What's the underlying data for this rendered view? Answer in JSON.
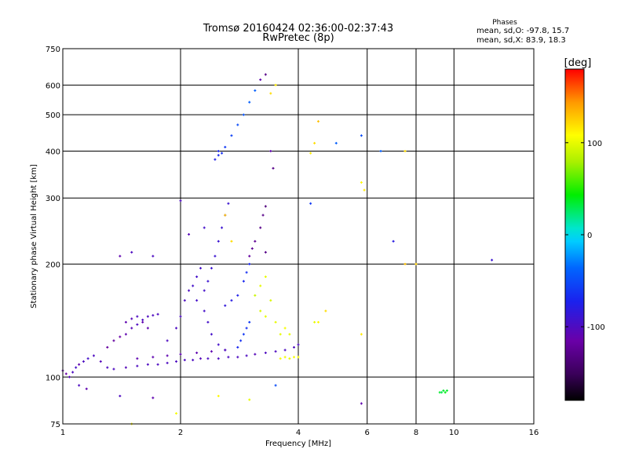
{
  "chart_data": {
    "type": "scatter",
    "title": "Tromsø 20160424 02:36:00-02:37:43",
    "subtitle": "RwPretec (8p)",
    "xlabel": "Frequency [MHz]",
    "ylabel": "Stationary phase Virtual Height [km]",
    "x_scale": "log",
    "y_scale": "log",
    "xlim": [
      1,
      16
    ],
    "ylim": [
      75,
      750
    ],
    "x_ticks": [
      1,
      2,
      4,
      6,
      8,
      10,
      16
    ],
    "y_ticks": [
      75,
      100,
      200,
      300,
      400,
      500,
      600,
      750
    ],
    "grid": true,
    "stats": {
      "heading": "Phases",
      "line_o": "mean, sd,O: -97.8, 15.7",
      "line_x": "mean, sd,X: 83.9, 18.3"
    },
    "colorbar": {
      "label": "[deg]",
      "ticks": [
        100,
        0,
        -100
      ],
      "range": [
        -180,
        180
      ]
    },
    "series": [
      {
        "points": [
          [
            1.0,
            104,
            -110
          ],
          [
            1.02,
            102,
            -115
          ],
          [
            1.04,
            100,
            -105
          ],
          [
            1.06,
            103,
            -100
          ],
          [
            1.08,
            106,
            -95
          ],
          [
            1.1,
            108,
            -110
          ],
          [
            1.13,
            110,
            -100
          ],
          [
            1.16,
            112,
            -95
          ],
          [
            1.2,
            114,
            -100
          ],
          [
            1.25,
            110,
            -105
          ],
          [
            1.3,
            106,
            -100
          ],
          [
            1.35,
            105,
            -100
          ],
          [
            1.45,
            106,
            -105
          ],
          [
            1.55,
            107,
            -100
          ],
          [
            1.65,
            108,
            -100
          ],
          [
            1.75,
            108,
            -100
          ],
          [
            1.85,
            109,
            -100
          ],
          [
            1.95,
            110,
            -100
          ],
          [
            2.05,
            111,
            -100
          ],
          [
            2.15,
            111,
            -100
          ],
          [
            2.25,
            112,
            -105
          ],
          [
            2.35,
            112,
            -100
          ],
          [
            2.5,
            112,
            -100
          ],
          [
            2.65,
            113,
            -100
          ],
          [
            2.8,
            113,
            -100
          ],
          [
            2.95,
            114,
            -100
          ],
          [
            3.1,
            115,
            -105
          ],
          [
            3.3,
            116,
            -100
          ],
          [
            3.5,
            117,
            -100
          ],
          [
            3.7,
            118,
            -100
          ],
          [
            3.9,
            120,
            -100
          ],
          [
            4.0,
            122,
            -100
          ],
          [
            1.55,
            112,
            -110
          ],
          [
            1.7,
            113,
            -110
          ],
          [
            1.85,
            114,
            -110
          ],
          [
            2.0,
            115,
            -110
          ],
          [
            2.2,
            116,
            -110
          ],
          [
            2.4,
            117,
            -110
          ],
          [
            2.6,
            118,
            -110
          ],
          [
            1.3,
            120,
            -120
          ],
          [
            1.35,
            125,
            -120
          ],
          [
            1.4,
            128,
            -115
          ],
          [
            1.45,
            130,
            -110
          ],
          [
            1.5,
            135,
            -105
          ],
          [
            1.55,
            138,
            -100
          ],
          [
            1.6,
            142,
            -100
          ],
          [
            1.65,
            145,
            -100
          ],
          [
            1.7,
            146,
            -100
          ],
          [
            1.75,
            147,
            -100
          ],
          [
            1.45,
            140,
            -110
          ],
          [
            1.5,
            143,
            -105
          ],
          [
            1.55,
            145,
            -100
          ],
          [
            1.6,
            140,
            -110
          ],
          [
            1.65,
            135,
            -110
          ],
          [
            1.85,
            125,
            -100
          ],
          [
            1.95,
            135,
            -100
          ],
          [
            2.0,
            145,
            -100
          ],
          [
            2.05,
            160,
            -100
          ],
          [
            2.1,
            170,
            -100
          ],
          [
            2.15,
            175,
            -95
          ],
          [
            2.2,
            185,
            -95
          ],
          [
            2.25,
            195,
            -95
          ],
          [
            2.2,
            160,
            -95
          ],
          [
            2.3,
            170,
            -95
          ],
          [
            2.35,
            180,
            -90
          ],
          [
            2.4,
            195,
            -90
          ],
          [
            2.45,
            210,
            -90
          ],
          [
            2.5,
            230,
            -90
          ],
          [
            2.55,
            250,
            -90
          ],
          [
            2.6,
            270,
            -90
          ],
          [
            2.65,
            290,
            -90
          ],
          [
            2.3,
            150,
            -95
          ],
          [
            2.35,
            140,
            -95
          ],
          [
            2.4,
            130,
            -95
          ],
          [
            2.5,
            122,
            -95
          ],
          [
            2.6,
            118,
            -100
          ],
          [
            2.6,
            155,
            -85
          ],
          [
            2.7,
            160,
            -80
          ],
          [
            2.8,
            165,
            -75
          ],
          [
            2.9,
            180,
            -70
          ],
          [
            2.95,
            190,
            -65
          ],
          [
            3.0,
            200,
            -70
          ],
          [
            2.8,
            120,
            -70
          ],
          [
            2.85,
            125,
            -65
          ],
          [
            2.9,
            130,
            -60
          ],
          [
            2.95,
            135,
            -65
          ],
          [
            3.0,
            140,
            -60
          ],
          [
            3.0,
            210,
            -120
          ],
          [
            3.1,
            230,
            -125
          ],
          [
            3.2,
            250,
            -130
          ],
          [
            3.25,
            270,
            -130
          ],
          [
            3.3,
            285,
            -135
          ],
          [
            3.05,
            220,
            -125
          ],
          [
            2.5,
            390,
            -70
          ],
          [
            2.55,
            395,
            -65
          ],
          [
            2.6,
            410,
            -60
          ],
          [
            2.7,
            440,
            -55
          ],
          [
            2.8,
            470,
            -50
          ],
          [
            2.9,
            500,
            -45
          ],
          [
            3.0,
            540,
            -40
          ],
          [
            3.1,
            580,
            -40
          ],
          [
            3.2,
            620,
            -110
          ],
          [
            3.3,
            640,
            -130
          ],
          [
            2.45,
            380,
            -75
          ],
          [
            2.5,
            400,
            -70
          ],
          [
            3.1,
            165,
            90
          ],
          [
            3.2,
            175,
            100
          ],
          [
            3.3,
            185,
            100
          ],
          [
            3.2,
            150,
            95
          ],
          [
            3.3,
            145,
            100
          ],
          [
            3.4,
            160,
            95
          ],
          [
            3.5,
            140,
            100
          ],
          [
            3.6,
            130,
            100
          ],
          [
            3.7,
            135,
            105
          ],
          [
            3.8,
            130,
            100
          ],
          [
            3.6,
            112,
            105
          ],
          [
            3.7,
            113,
            105
          ],
          [
            3.8,
            112,
            100
          ],
          [
            3.9,
            113,
            105
          ],
          [
            4.0,
            113,
            105
          ],
          [
            9.2,
            91,
            35
          ],
          [
            9.3,
            91,
            30
          ],
          [
            9.4,
            92,
            35
          ],
          [
            9.5,
            91,
            40
          ],
          [
            9.6,
            92,
            35
          ],
          [
            1.5,
            75,
            110
          ],
          [
            1.95,
            80,
            105
          ],
          [
            3.5,
            600,
            115
          ],
          [
            3.4,
            570,
            120
          ],
          [
            4.5,
            480,
            130
          ],
          [
            4.4,
            420,
            120
          ],
          [
            4.3,
            395,
            115
          ],
          [
            5.8,
            330,
            110
          ],
          [
            5.9,
            315,
            115
          ],
          [
            7.5,
            400,
            120
          ],
          [
            7.5,
            200,
            130
          ],
          [
            8.0,
            200,
            125
          ],
          [
            6.5,
            400,
            -40
          ],
          [
            7.0,
            230,
            -80
          ],
          [
            5.8,
            440,
            -50
          ],
          [
            5.0,
            420,
            -40
          ],
          [
            12.5,
            205,
            -90
          ],
          [
            4.7,
            150,
            120
          ],
          [
            4.5,
            140,
            110
          ],
          [
            5.8,
            130,
            115
          ],
          [
            5.8,
            85,
            -110
          ],
          [
            4.4,
            140,
            100
          ],
          [
            1.1,
            95,
            -100
          ],
          [
            1.15,
            93,
            -110
          ],
          [
            1.4,
            89,
            -100
          ],
          [
            1.7,
            88,
            -110
          ],
          [
            2.5,
            89,
            110
          ],
          [
            3.0,
            87,
            100
          ],
          [
            3.5,
            95,
            -50
          ],
          [
            1.4,
            210,
            -110
          ],
          [
            1.5,
            215,
            -100
          ],
          [
            1.7,
            210,
            -100
          ],
          [
            2.0,
            295,
            -100
          ],
          [
            2.1,
            240,
            -105
          ],
          [
            2.3,
            250,
            -95
          ],
          [
            3.4,
            400,
            -110
          ],
          [
            3.45,
            360,
            -130
          ],
          [
            4.3,
            290,
            -60
          ],
          [
            2.6,
            270,
            130
          ],
          [
            2.7,
            230,
            120
          ],
          [
            3.3,
            215,
            -130
          ]
        ]
      }
    ]
  }
}
